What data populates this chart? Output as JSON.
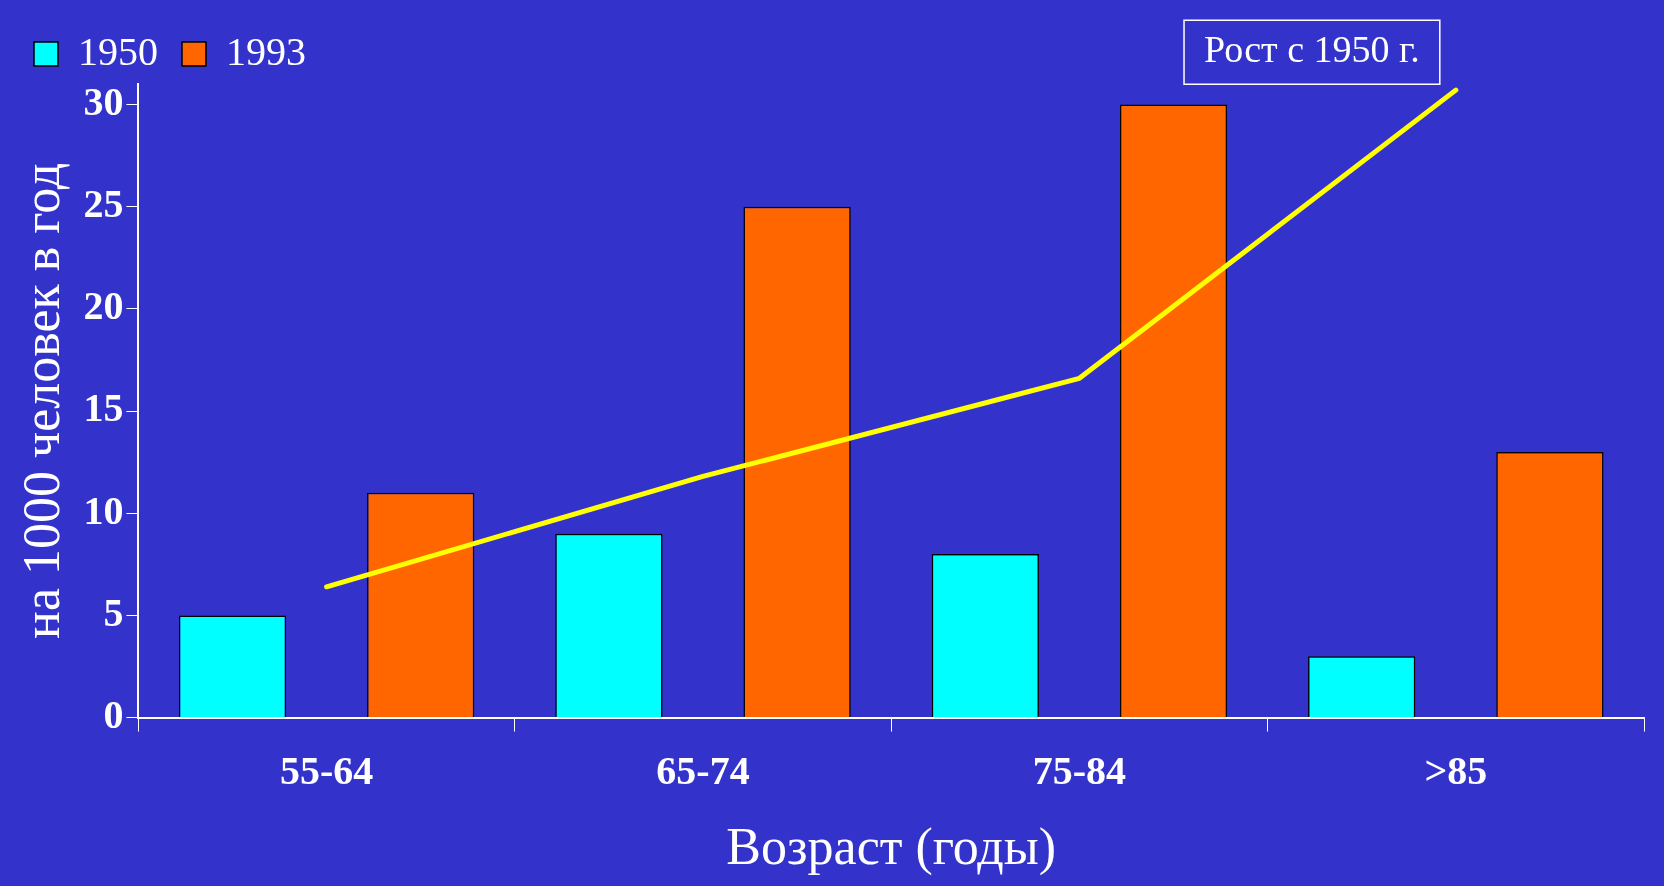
{
  "chart_data": {
    "type": "bar",
    "xlabel": "Возраст (годы)",
    "ylabel": "на 1000 человек в год",
    "categories": [
      "55-64",
      "65-74",
      "75-84",
      ">85"
    ],
    "series": [
      {
        "name": "1950",
        "color": "#00ffff",
        "values": [
          5,
          9,
          8,
          3
        ]
      },
      {
        "name": "1993",
        "color": "#ff6600",
        "values": [
          11,
          25,
          30,
          13
        ]
      },
      {
        "name": "Рост с 1950 г.",
        "type": "line",
        "color": "#ffff00",
        "values": [
          6.4,
          11.8,
          16.6,
          30.7
        ]
      }
    ],
    "ylim": [
      0,
      31
    ],
    "yticks": [
      0,
      5,
      10,
      15,
      20,
      25,
      30
    ],
    "legend": "top left"
  }
}
